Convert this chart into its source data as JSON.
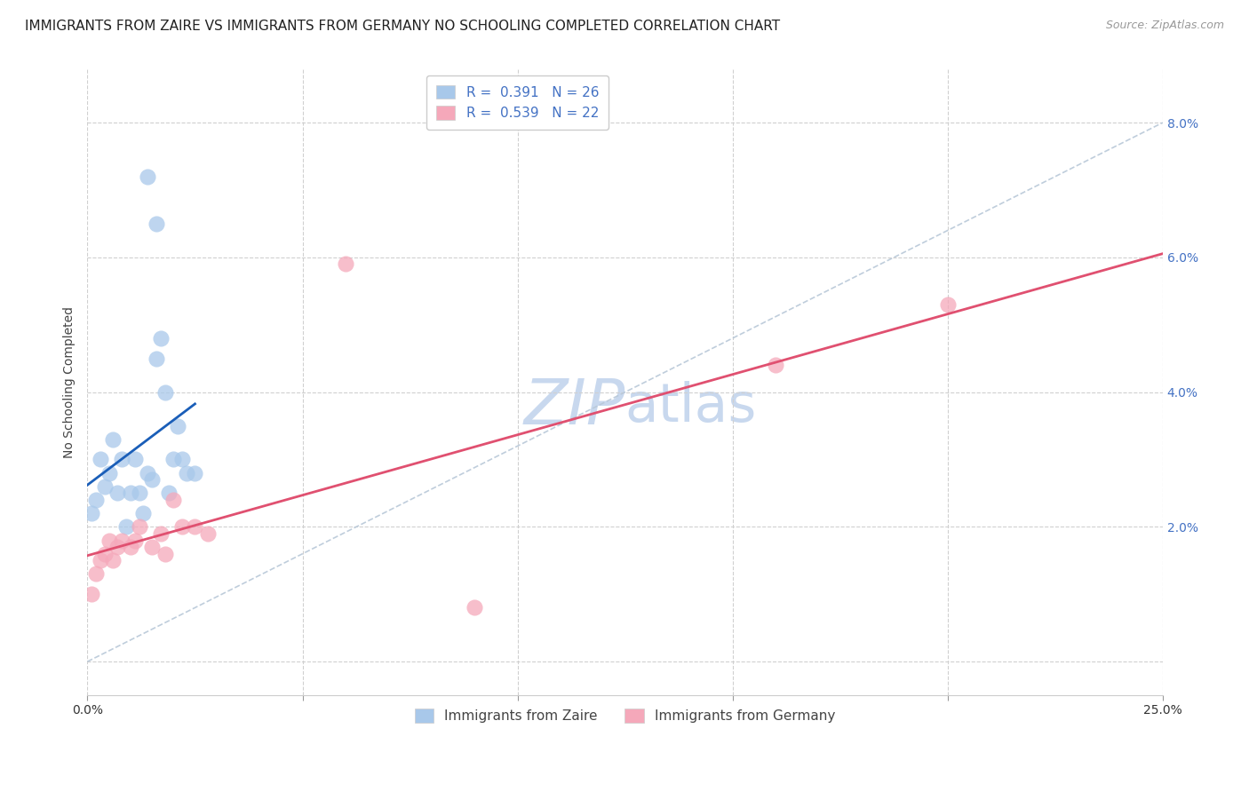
{
  "title": "IMMIGRANTS FROM ZAIRE VS IMMIGRANTS FROM GERMANY NO SCHOOLING COMPLETED CORRELATION CHART",
  "source": "Source: ZipAtlas.com",
  "ylabel": "No Schooling Completed",
  "xlim": [
    0.0,
    0.25
  ],
  "ylim": [
    -0.005,
    0.088
  ],
  "yticks": [
    0.0,
    0.02,
    0.04,
    0.06,
    0.08
  ],
  "ytick_labels": [
    "",
    "2.0%",
    "4.0%",
    "6.0%",
    "8.0%"
  ],
  "xticks": [
    0.0,
    0.05,
    0.1,
    0.15,
    0.2,
    0.25
  ],
  "xtick_labels": [
    "0.0%",
    "",
    "",
    "",
    "",
    "25.0%"
  ],
  "zaire_x": [
    0.001,
    0.002,
    0.003,
    0.004,
    0.005,
    0.006,
    0.007,
    0.008,
    0.009,
    0.01,
    0.011,
    0.012,
    0.013,
    0.014,
    0.015,
    0.016,
    0.017,
    0.018,
    0.019,
    0.02,
    0.021,
    0.022,
    0.023,
    0.025,
    0.014,
    0.016
  ],
  "zaire_y": [
    0.022,
    0.024,
    0.03,
    0.026,
    0.028,
    0.033,
    0.025,
    0.03,
    0.02,
    0.025,
    0.03,
    0.025,
    0.022,
    0.028,
    0.027,
    0.045,
    0.048,
    0.04,
    0.025,
    0.03,
    0.035,
    0.03,
    0.028,
    0.028,
    0.072,
    0.065
  ],
  "germany_x": [
    0.001,
    0.002,
    0.003,
    0.004,
    0.005,
    0.006,
    0.007,
    0.008,
    0.01,
    0.011,
    0.012,
    0.015,
    0.017,
    0.018,
    0.02,
    0.022,
    0.025,
    0.028,
    0.06,
    0.09,
    0.16,
    0.2
  ],
  "germany_y": [
    0.01,
    0.013,
    0.015,
    0.016,
    0.018,
    0.015,
    0.017,
    0.018,
    0.017,
    0.018,
    0.02,
    0.017,
    0.019,
    0.016,
    0.024,
    0.02,
    0.02,
    0.019,
    0.059,
    0.008,
    0.044,
    0.053
  ],
  "zaire_color": "#a8c8ea",
  "germany_color": "#f5a8ba",
  "zaire_line_color": "#1a5eb8",
  "germany_line_color": "#e05070",
  "diag_line_color": "#b8c8d8",
  "title_fontsize": 11,
  "axis_label_fontsize": 10,
  "tick_fontsize": 10,
  "legend_fontsize": 11,
  "background_color": "#ffffff",
  "grid_color": "#d0d0d0",
  "watermark_color": "#c8d8ee",
  "watermark_fontsize": 52
}
